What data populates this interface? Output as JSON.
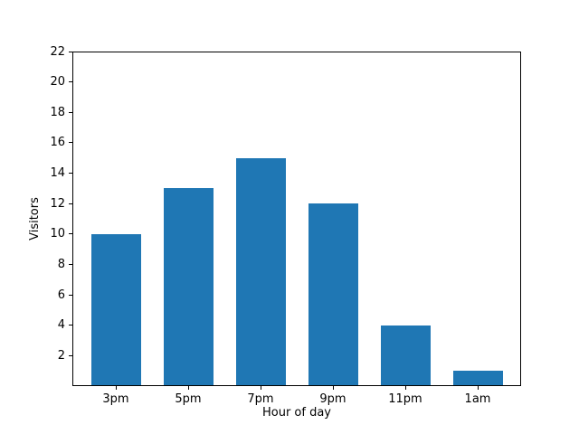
{
  "figure": {
    "background": "#ffffff"
  },
  "chart_data": {
    "type": "bar",
    "categories": [
      "3pm",
      "5pm",
      "7pm",
      "9pm",
      "11pm",
      "1am"
    ],
    "values": [
      10,
      13,
      15,
      12,
      4,
      1
    ],
    "title": "",
    "xlabel": "Hour of day",
    "ylabel": "Visitors",
    "ylim": [
      0,
      22
    ],
    "yticks": [
      2,
      4,
      6,
      8,
      10,
      12,
      14,
      16,
      18,
      20,
      22
    ],
    "bar_color": "#1f77b4",
    "axis_color": "#000000",
    "grid": false,
    "legend_position": "none"
  }
}
